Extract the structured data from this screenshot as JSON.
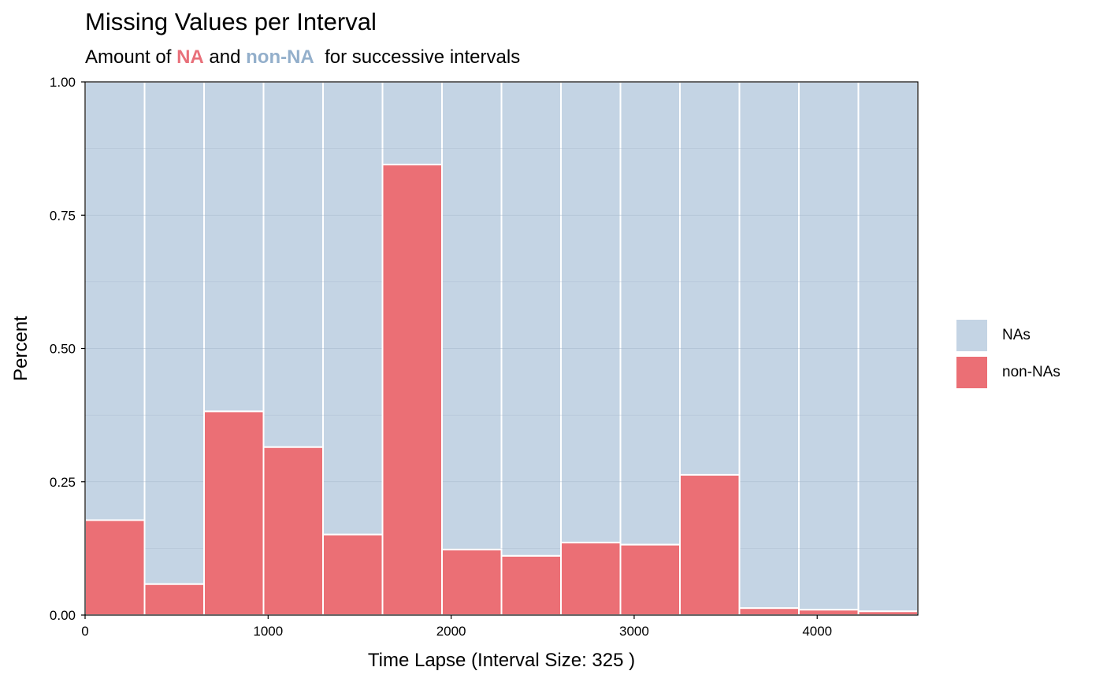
{
  "title": "Missing Values per Interval",
  "subtitle": {
    "prefix": "Amount of ",
    "na": "NA",
    "middle": " and ",
    "non_na": "non-NA",
    "suffix": "  for successive intervals"
  },
  "colors": {
    "na": "#C4D4E4",
    "non_na": "#EB6F75",
    "subtitle_na": "#E8707A",
    "subtitle_non_na": "#93AFCB",
    "bar_outline": "#FFFFFF"
  },
  "legend": [
    {
      "label": "NAs",
      "color": "#C4D4E4"
    },
    {
      "label": "non-NAs",
      "color": "#EB6F75"
    }
  ],
  "chart_data": {
    "type": "bar",
    "stacked": true,
    "title": "Missing Values per Interval",
    "xlabel": "Time Lapse (Interval Size: 325 )",
    "ylabel": "Percent",
    "xlim": [
      0,
      4550
    ],
    "ylim": [
      0,
      1
    ],
    "interval_size": 325,
    "x_ticks": [
      0,
      1000,
      2000,
      3000,
      4000
    ],
    "x_tick_labels": [
      "0",
      "1000",
      "2000",
      "3000",
      "4000"
    ],
    "y_ticks": [
      0,
      0.25,
      0.5,
      0.75,
      1
    ],
    "y_tick_labels": [
      "0.00",
      "0.25",
      "0.50",
      "0.75",
      "1.00"
    ],
    "x_bin_starts": [
      0,
      325,
      650,
      975,
      1300,
      1625,
      1950,
      2275,
      2600,
      2925,
      3250,
      3575,
      3900,
      4225
    ],
    "grid": true,
    "legend_position": "right",
    "series": [
      {
        "name": "non-NAs",
        "values": [
          0.178,
          0.058,
          0.382,
          0.315,
          0.151,
          0.845,
          0.123,
          0.111,
          0.136,
          0.132,
          0.263,
          0.013,
          0.01,
          0.007
        ]
      },
      {
        "name": "NAs",
        "values": [
          0.822,
          0.942,
          0.618,
          0.685,
          0.849,
          0.155,
          0.877,
          0.889,
          0.864,
          0.868,
          0.737,
          0.987,
          0.99,
          0.993
        ]
      }
    ]
  }
}
